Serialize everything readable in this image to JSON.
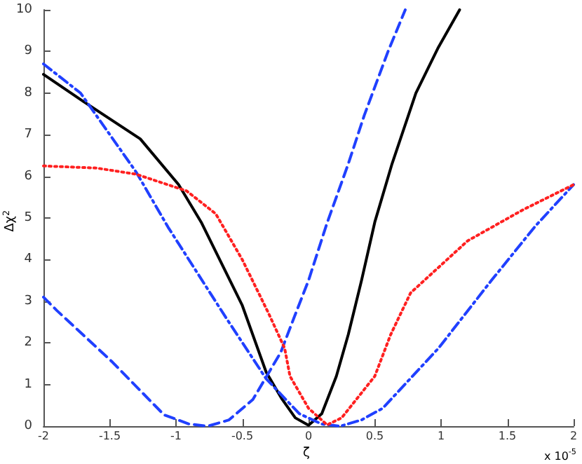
{
  "chart_data": {
    "type": "line",
    "xlabel": "ζ",
    "ylabel": "Δχ$^{2}$",
    "annotations": [
      "x 10$^{-5}$"
    ],
    "xlim": [
      -2,
      2
    ],
    "xticks": [
      -2,
      -1.5,
      -1,
      -0.5,
      0,
      0.5,
      1,
      1.5,
      2
    ],
    "ylim": [
      0,
      10
    ],
    "yticks": [
      0,
      1,
      2,
      3,
      4,
      5,
      6,
      7,
      8,
      9,
      10
    ],
    "grid": false,
    "marker": "none",
    "series": [
      {
        "color": "#000000",
        "line_style": "solid",
        "x": [
          -2,
          -1.7,
          -1.27,
          -0.98,
          -0.81,
          -0.5,
          -0.32,
          -0.2,
          -0.1,
          0,
          0.1,
          0.21,
          0.3,
          0.4,
          0.5,
          0.63,
          0.81,
          0.98,
          1.14
        ],
        "values": [
          8.45,
          7.8,
          6.9,
          5.8,
          4.9,
          2.9,
          1.3,
          0.65,
          0.2,
          0.02,
          0.3,
          1.2,
          2.2,
          3.5,
          4.9,
          6.3,
          8.0,
          9.1,
          10
        ]
      },
      {
        "color": "#2040ff",
        "line_style": "dashed",
        "x": [
          -2,
          -1.9,
          -1.48,
          -1.09,
          -0.9,
          -0.76,
          -0.6,
          -0.42,
          -0.21,
          -0.11,
          0,
          0.14,
          0.3,
          0.42,
          0.6,
          0.73
        ],
        "values": [
          3.1,
          2.78,
          1.54,
          0.27,
          0.05,
          0,
          0.15,
          0.64,
          1.77,
          2.6,
          3.5,
          4.88,
          6.3,
          7.46,
          9.0,
          10
        ]
      },
      {
        "color": "#2040ff",
        "line_style": "dashdot",
        "x": [
          -2,
          -1.72,
          -1.3,
          -1.06,
          -0.63,
          -0.32,
          -0.07,
          0.1,
          0.24,
          0.4,
          0.56,
          0.98,
          1.38,
          1.71,
          2
        ],
        "values": [
          8.7,
          8.0,
          6.1,
          4.78,
          2.64,
          1.14,
          0.3,
          0.05,
          0,
          0.15,
          0.43,
          1.87,
          3.5,
          4.8,
          5.8
        ]
      },
      {
        "color": "#ff2020",
        "line_style": "dotted",
        "x": [
          -2,
          -1.6,
          -1.3,
          -0.92,
          -0.7,
          -0.5,
          -0.3,
          -0.18,
          -0.14,
          0,
          0.14,
          0.25,
          0.5,
          0.62,
          0.77,
          1.2,
          1.62,
          2
        ],
        "values": [
          6.25,
          6.2,
          6.05,
          5.65,
          5.1,
          4.0,
          2.7,
          1.87,
          1.2,
          0.43,
          0.03,
          0.2,
          1.2,
          2.2,
          3.2,
          4.45,
          5.2,
          5.8
        ]
      }
    ]
  }
}
